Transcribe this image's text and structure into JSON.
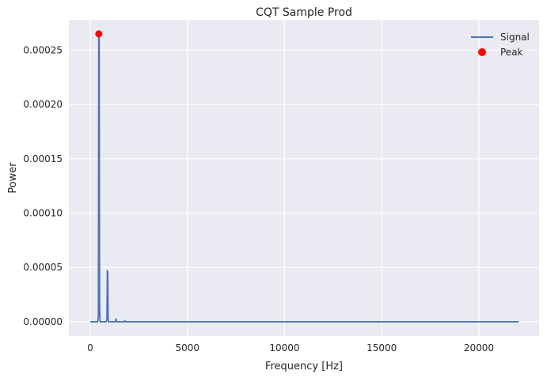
{
  "chart_data": {
    "type": "line",
    "title": "CQT Sample Prod",
    "xlabel": "Frequency [Hz]",
    "ylabel": "Power",
    "xlim": [
      -1100,
      23100
    ],
    "ylim": [
      -1.32e-05,
      0.000278
    ],
    "xticks": [
      0,
      5000,
      10000,
      15000,
      20000
    ],
    "xtick_labels": [
      "0",
      "5000",
      "10000",
      "15000",
      "20000"
    ],
    "yticks": [
      0,
      5e-05,
      0.0001,
      0.00015,
      0.0002,
      0.00025
    ],
    "ytick_labels": [
      "0.00000",
      "0.00005",
      "0.00010",
      "0.00015",
      "0.00020",
      "0.00025"
    ],
    "grid": true,
    "legend": "top-right",
    "series": [
      {
        "name": "Signal",
        "color": "#4c72b0",
        "points": [
          [
            0,
            0
          ],
          [
            380,
            0
          ],
          [
            420,
            5e-06
          ],
          [
            440,
            0.000265
          ],
          [
            460,
            0.00026
          ],
          [
            480,
            2e-05
          ],
          [
            500,
            0
          ],
          [
            820,
            0
          ],
          [
            860,
            2e-06
          ],
          [
            880,
            4.7e-05
          ],
          [
            900,
            4.6e-05
          ],
          [
            920,
            3e-06
          ],
          [
            940,
            0
          ],
          [
            1300,
            0
          ],
          [
            1320,
            2.5e-06
          ],
          [
            1340,
            2e-06
          ],
          [
            1360,
            0
          ],
          [
            1760,
            0
          ],
          [
            1780,
            1e-06
          ],
          [
            1800,
            0
          ],
          [
            22050,
            0
          ]
        ]
      }
    ],
    "markers": [
      {
        "name": "Peak",
        "color": "#ff0000",
        "x": 440,
        "y": 0.000265
      }
    ]
  }
}
